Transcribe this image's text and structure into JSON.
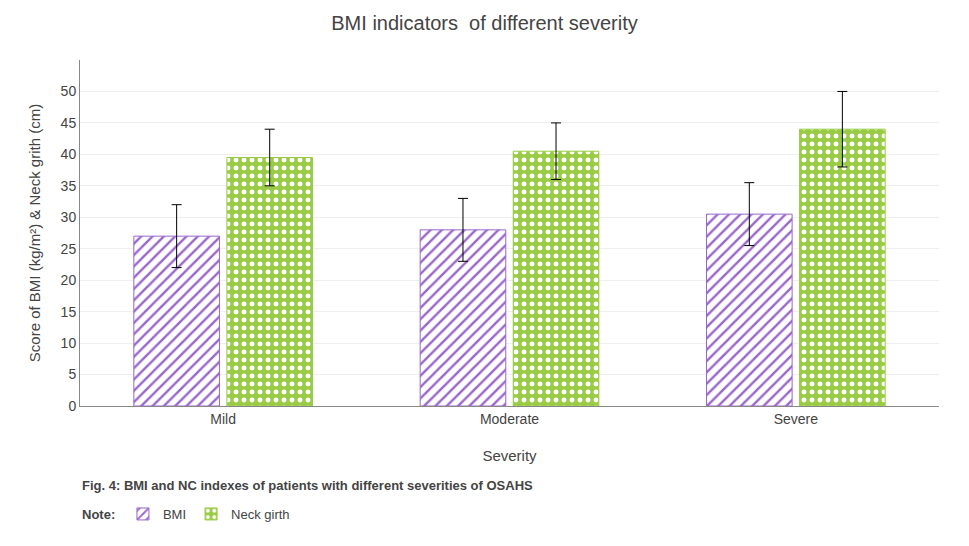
{
  "chart_data": {
    "type": "bar",
    "title": "BMI indicators  of different severity",
    "xlabel": "Severity",
    "ylabel": "Score of BMI (kg/m²) & Neck grith (cm)",
    "categories": [
      "Mild",
      "Moderate",
      "Severe"
    ],
    "series": [
      {
        "name": "BMI",
        "color": "#9966CC",
        "values": [
          27.0,
          28.0,
          30.5
        ],
        "errors": [
          5.0,
          5.0,
          5.0
        ]
      },
      {
        "name": "Neck girth",
        "color": "#99CC44",
        "values": [
          39.5,
          40.5,
          44.0
        ],
        "errors": [
          4.5,
          4.5,
          6.0
        ]
      }
    ],
    "ylim": [
      0,
      55
    ],
    "yticks": [
      0,
      5,
      10,
      15,
      20,
      25,
      30,
      35,
      40,
      45,
      50
    ],
    "grid": true,
    "legend": "bottom",
    "annotations": [
      "Fig. 4: BMI and NC indexes of patients with different severities of OSAHS",
      "Note:"
    ]
  }
}
